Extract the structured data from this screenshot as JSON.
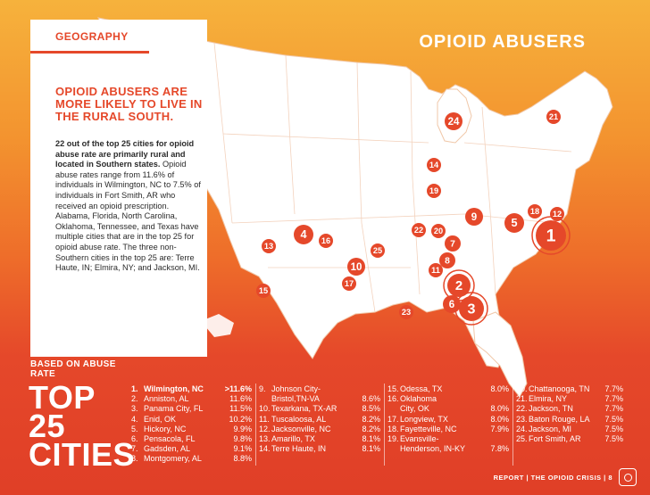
{
  "header": {
    "section_tag": "GEOGRAPHY",
    "title": "OPIOID ABUSERS"
  },
  "intro": {
    "headline": "OPIOID ABUSERS ARE MORE LIKELY TO LIVE IN THE RURAL SOUTH.",
    "lead_bold": "22 out of the top 25 cities for opioid abuse rate are primarily rural and located in Southern states.",
    "body": " Opioid abuse rates range from 11.6% of individuals in Wilmington, NC to 7.5% of individuals in Fort Smith, AR who received an opioid prescription. Alabama, Florida, North Carolina, Oklahoma, Tennessee, and Texas have multiple cities that are in the top 25 for opioid abuse rate. The three non-Southern cities in the top 25 are: Terre Haute, IN; Elmira, NY; and Jackson, MI."
  },
  "ranking": {
    "label": "BASED ON ABUSE RATE",
    "title_line1": "TOP",
    "title_line2": "25",
    "title_line3": "CITIES"
  },
  "cities": [
    {
      "rank": "1.",
      "name": "Wilmington, NC",
      "rate": ">11.6%"
    },
    {
      "rank": "2.",
      "name": "Anniston, AL",
      "rate": "11.6%"
    },
    {
      "rank": "3.",
      "name": "Panama City, FL",
      "rate": "11.5%"
    },
    {
      "rank": "4.",
      "name": "Enid, OK",
      "rate": "10.2%"
    },
    {
      "rank": "5.",
      "name": "Hickory, NC",
      "rate": "9.9%"
    },
    {
      "rank": "6.",
      "name": "Pensacola, FL",
      "rate": "9.8%"
    },
    {
      "rank": "7.",
      "name": "Gadsden, AL",
      "rate": "9.1%"
    },
    {
      "rank": "8.",
      "name": "Montgomery, AL",
      "rate": "8.8%"
    },
    {
      "rank": "9.",
      "name": "Johnson City-",
      "rate": ""
    },
    {
      "rank": "",
      "name": "Bristol,TN-VA",
      "rate": "8.6%"
    },
    {
      "rank": "10.",
      "name": "Texarkana, TX-AR",
      "rate": "8.5%"
    },
    {
      "rank": "11.",
      "name": "Tuscaloosa, AL",
      "rate": "8.2%"
    },
    {
      "rank": "12.",
      "name": "Jacksonville, NC",
      "rate": "8.2%"
    },
    {
      "rank": "13.",
      "name": "Amarillo, TX",
      "rate": "8.1%"
    },
    {
      "rank": "14.",
      "name": "Terre Haute, IN",
      "rate": "8.1%"
    },
    {
      "rank": "15.",
      "name": "Odessa, TX",
      "rate": "8.0%"
    },
    {
      "rank": "16.",
      "name": "Oklahoma",
      "rate": ""
    },
    {
      "rank": "",
      "name": "City, OK",
      "rate": "8.0%"
    },
    {
      "rank": "17.",
      "name": "Longview, TX",
      "rate": "8.0%"
    },
    {
      "rank": "18.",
      "name": "Fayetteville, NC",
      "rate": "7.9%"
    },
    {
      "rank": "19.",
      "name": "Evansville-",
      "rate": ""
    },
    {
      "rank": "",
      "name": "Henderson, IN-KY",
      "rate": "7.8%"
    },
    {
      "rank": "20.",
      "name": "Chattanooga, TN",
      "rate": "7.7%"
    },
    {
      "rank": "21.",
      "name": "Elmira, NY",
      "rate": "7.7%"
    },
    {
      "rank": "22.",
      "name": "Jackson, TN",
      "rate": "7.7%"
    },
    {
      "rank": "23.",
      "name": "Baton Rouge, LA",
      "rate": "7.5%"
    },
    {
      "rank": "24.",
      "name": "Jackson, MI",
      "rate": "7.5%"
    },
    {
      "rank": "25.",
      "name": "Fort Smith, AR",
      "rate": "7.5%"
    }
  ],
  "markers": [
    "1",
    "2",
    "3",
    "4",
    "5",
    "6",
    "7",
    "8",
    "9",
    "10",
    "11",
    "12",
    "13",
    "14",
    "15",
    "16",
    "17",
    "18",
    "19",
    "20",
    "21",
    "22",
    "23",
    "24",
    "25"
  ],
  "footer": {
    "text": "REPORT  |  THE OPIOID CRISIS  |  8"
  },
  "colors": {
    "accent": "#e5482a",
    "map_fill": "#ffffff",
    "bg_top": "#f6b23c",
    "bg_bottom": "#e03f27"
  }
}
